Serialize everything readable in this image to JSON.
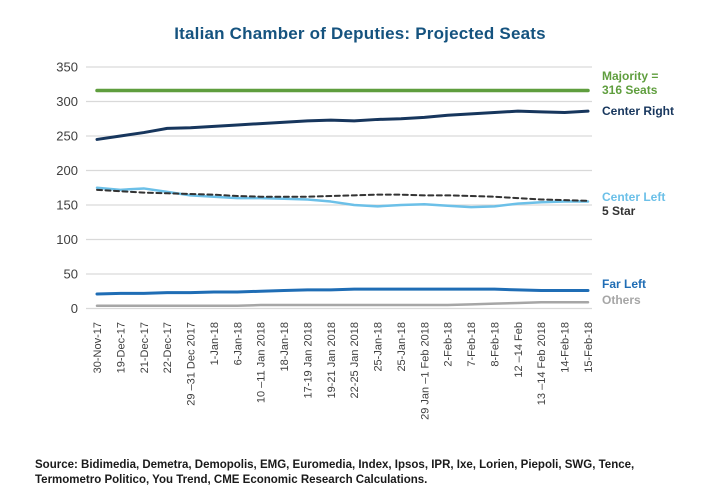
{
  "title": "Italian Chamber of Deputies: Projected Seats",
  "legend": {
    "majority_line1": "Majority =",
    "majority_line2": "316 Seats",
    "center_right": "Center Right",
    "center_left": "Center Left",
    "five_star": "5 Star",
    "far_left": "Far Left",
    "others": "Others"
  },
  "source": "Source: Bidimedia, Demetra, Demopolis, EMG, Euromedia, Index, Ipsos, IPR, Ixe, Lorien, Piepoli, SWG, Tence, Termometro Politico, You Trend, CME Economic Research Calculations.",
  "colors": {
    "title": "#15537f",
    "majority_green": "#5f9e3e",
    "center_right_navy": "#17365d",
    "center_left_blue": "#6cc0e8",
    "five_star_dark": "#333333",
    "far_left_blue": "#1f6db5",
    "others_gray": "#a6a6a6",
    "gridline": "#d9d9d9",
    "axis_text": "#404040"
  },
  "chart_data": {
    "type": "line",
    "title": "Italian Chamber of Deputies: Projected Seats",
    "xlabel": "",
    "ylabel": "",
    "ylim": [
      0,
      350
    ],
    "yticks": [
      0,
      50,
      100,
      150,
      200,
      250,
      300,
      350
    ],
    "grid": "horizontal",
    "legend_position": "right-of-line-ends",
    "x_labels": [
      "30-Nov-17",
      "19-Dec-17",
      "21-Dec-17",
      "22-Dec-17",
      "29 –31 Dec 2017",
      "1-Jan-18",
      "6-Jan-18",
      "10 –11 Jan 2018",
      "18-Jan-18",
      "17-19 Jan 2018",
      "19-21 Jan 2018",
      "22-25 Jan 2018",
      "25-Jan-18",
      "25-Jan-18",
      "29 Jan –1 Feb 2018",
      "2-Feb-18",
      "7-Feb-18",
      "8-Feb-18",
      "12 –14 Feb",
      "13 –14 Feb 2018",
      "14-Feb-18",
      "15-Feb-18"
    ],
    "series": [
      {
        "name": "Majority = 316 Seats",
        "color": "#5f9e3e",
        "style": "solid",
        "width": 3.5,
        "values": [
          316,
          316,
          316,
          316,
          316,
          316,
          316,
          316,
          316,
          316,
          316,
          316,
          316,
          316,
          316,
          316,
          316,
          316,
          316,
          316,
          316,
          316
        ]
      },
      {
        "name": "Center Right",
        "color": "#17365d",
        "style": "solid",
        "width": 3,
        "values": [
          245,
          250,
          255,
          261,
          262,
          264,
          266,
          268,
          270,
          272,
          273,
          272,
          274,
          275,
          277,
          280,
          282,
          284,
          286,
          285,
          284,
          286
        ]
      },
      {
        "name": "Center Left",
        "color": "#6cc0e8",
        "style": "solid",
        "width": 2.5,
        "values": [
          175,
          172,
          174,
          169,
          164,
          162,
          160,
          160,
          159,
          158,
          155,
          150,
          148,
          150,
          151,
          149,
          147,
          148,
          152,
          154,
          155,
          155
        ]
      },
      {
        "name": "5 Star",
        "color": "#333333",
        "style": "dashed",
        "width": 2,
        "values": [
          172,
          170,
          168,
          167,
          166,
          165,
          163,
          162,
          162,
          162,
          163,
          164,
          165,
          165,
          164,
          164,
          163,
          162,
          160,
          158,
          157,
          156
        ]
      },
      {
        "name": "Far Left",
        "color": "#1f6db5",
        "style": "solid",
        "width": 3,
        "values": [
          21,
          22,
          22,
          23,
          23,
          24,
          24,
          25,
          26,
          27,
          27,
          28,
          28,
          28,
          28,
          28,
          28,
          28,
          27,
          26,
          26,
          26
        ]
      },
      {
        "name": "Others",
        "color": "#a6a6a6",
        "style": "solid",
        "width": 2.5,
        "values": [
          4,
          4,
          4,
          4,
          4,
          4,
          4,
          5,
          5,
          5,
          5,
          5,
          5,
          5,
          5,
          5,
          6,
          7,
          8,
          9,
          9,
          9
        ]
      }
    ]
  }
}
